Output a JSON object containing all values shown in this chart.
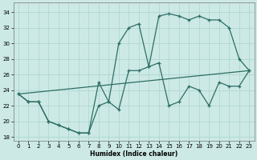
{
  "xlabel": "Humidex (Indice chaleur)",
  "bg_color": "#cce9e5",
  "line_color": "#2d6e65",
  "grid_color": "#aad4cf",
  "xlim": [
    -0.5,
    23.5
  ],
  "ylim": [
    17.5,
    35.2
  ],
  "xticks": [
    0,
    1,
    2,
    3,
    4,
    5,
    6,
    7,
    8,
    9,
    10,
    11,
    12,
    13,
    14,
    15,
    16,
    17,
    18,
    19,
    20,
    21,
    22,
    23
  ],
  "yticks": [
    18,
    20,
    22,
    24,
    26,
    28,
    30,
    32,
    34
  ],
  "line_upper": {
    "x": [
      0,
      1,
      2,
      3,
      4,
      5,
      6,
      7,
      8,
      9,
      10,
      11,
      12,
      13,
      14,
      15,
      16,
      17,
      18,
      19,
      20,
      21,
      22,
      23
    ],
    "y": [
      23.5,
      22.5,
      22.5,
      20.0,
      19.5,
      19.0,
      18.5,
      18.5,
      22.0,
      22.5,
      30.0,
      32.0,
      32.5,
      27.0,
      33.5,
      33.8,
      33.5,
      33.0,
      33.5,
      33.0,
      33.0,
      32.0,
      28.0,
      26.5
    ]
  },
  "line_diagonal": {
    "x": [
      0,
      23
    ],
    "y": [
      23.5,
      26.5
    ]
  },
  "line_lower": {
    "x": [
      0,
      1,
      2,
      3,
      4,
      5,
      6,
      7,
      8,
      9,
      10,
      11,
      12,
      13,
      14,
      15,
      16,
      17,
      18,
      19,
      20,
      21,
      22,
      23
    ],
    "y": [
      23.5,
      22.5,
      22.5,
      20.0,
      19.5,
      19.0,
      18.5,
      18.5,
      25.0,
      22.5,
      21.5,
      26.5,
      26.5,
      27.0,
      27.5,
      22.0,
      22.5,
      24.5,
      24.0,
      22.0,
      25.0,
      24.5,
      24.5,
      26.5
    ]
  }
}
